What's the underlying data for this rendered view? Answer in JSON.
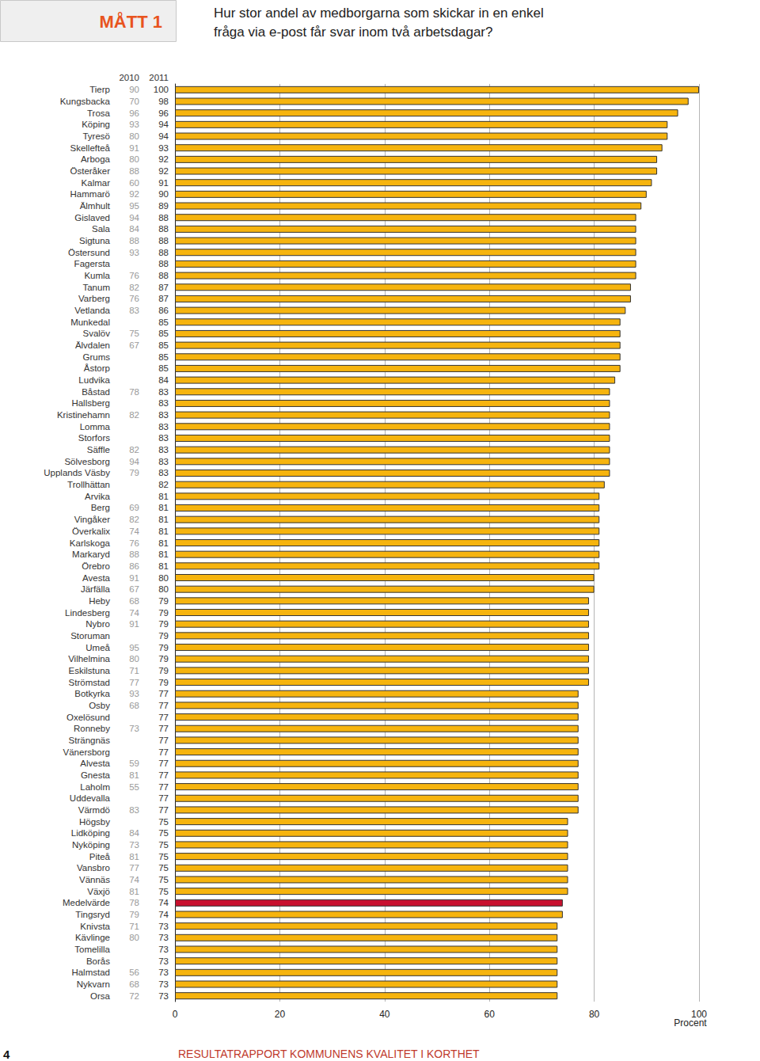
{
  "chart_data": {
    "type": "bar",
    "orientation": "horizontal",
    "badge": "MÅTT 1",
    "title": "Hur stor andel av medborgarna som skickar in en enkel fråga via e-post får svar inom två arbetsdagar?",
    "xlabel": "Procent",
    "page_number": "4",
    "footer": "RESULTATRAPPORT KOMMUNENS KVALITET I KORTHET",
    "categories": [
      "Tierp",
      "Kungsbacka",
      "Trosa",
      "Köping",
      "Tyresö",
      "Skellefteå",
      "Arboga",
      "Österåker",
      "Kalmar",
      "Hammarö",
      "Älmhult",
      "Gislaved",
      "Sala",
      "Sigtuna",
      "Östersund",
      "Fagersta",
      "Kumla",
      "Tanum",
      "Varberg",
      "Vetlanda",
      "Munkedal",
      "Svalöv",
      "Älvdalen",
      "Grums",
      "Åstorp",
      "Ludvika",
      "Båstad",
      "Hallsberg",
      "Kristinehamn",
      "Lomma",
      "Storfors",
      "Säffle",
      "Sölvesborg",
      "Upplands Väsby",
      "Trollhättan",
      "Arvika",
      "Berg",
      "Vingåker",
      "Överkalix",
      "Karlskoga",
      "Markaryd",
      "Örebro",
      "Avesta",
      "Järfälla",
      "Heby",
      "Lindesberg",
      "Nybro",
      "Storuman",
      "Umeå",
      "Vilhelmina",
      "Eskilstuna",
      "Strömstad",
      "Botkyrka",
      "Osby",
      "Oxelösund",
      "Ronneby",
      "Strängnäs",
      "Vänersborg",
      "Alvesta",
      "Gnesta",
      "Laholm",
      "Uddevalla",
      "Värmdö",
      "Högsby",
      "Lidköping",
      "Nyköping",
      "Piteå",
      "Vansbro",
      "Vännäs",
      "Växjö",
      "Medelvärde",
      "Tingsryd",
      "Knivsta",
      "Kävlinge",
      "Tomelilla",
      "Borås",
      "Halmstad",
      "Nykvarn",
      "Orsa"
    ],
    "series": [
      {
        "name": "2010",
        "type": "text",
        "color": "#9a9a9a",
        "values": [
          90,
          70,
          96,
          93,
          80,
          91,
          80,
          88,
          60,
          92,
          95,
          94,
          84,
          88,
          93,
          null,
          76,
          82,
          76,
          83,
          null,
          75,
          67,
          null,
          null,
          null,
          78,
          null,
          82,
          null,
          null,
          82,
          94,
          79,
          null,
          null,
          69,
          82,
          74,
          76,
          88,
          86,
          91,
          67,
          68,
          74,
          91,
          null,
          95,
          80,
          71,
          77,
          93,
          68,
          null,
          73,
          null,
          null,
          59,
          81,
          55,
          null,
          83,
          null,
          84,
          73,
          81,
          77,
          74,
          81,
          78,
          79,
          71,
          80,
          null,
          null,
          56,
          68,
          72
        ]
      },
      {
        "name": "2011",
        "type": "bar",
        "color": "#333333",
        "values": [
          100,
          98,
          96,
          94,
          94,
          93,
          92,
          92,
          91,
          90,
          89,
          88,
          88,
          88,
          88,
          88,
          88,
          87,
          87,
          86,
          85,
          85,
          85,
          85,
          85,
          84,
          83,
          83,
          83,
          83,
          83,
          83,
          83,
          83,
          82,
          81,
          81,
          81,
          81,
          81,
          81,
          81,
          80,
          80,
          79,
          79,
          79,
          79,
          79,
          79,
          79,
          79,
          77,
          77,
          77,
          77,
          77,
          77,
          77,
          77,
          77,
          77,
          77,
          75,
          75,
          75,
          75,
          75,
          75,
          75,
          74,
          74,
          73,
          73,
          73,
          73,
          73,
          73,
          73
        ],
        "colors": [
          "#f6b40e",
          "#f6b40e",
          "#f6b40e",
          "#f6b40e",
          "#f6b40e",
          "#f6b40e",
          "#f6b40e",
          "#f6b40e",
          "#f6b40e",
          "#f6b40e",
          "#f6b40e",
          "#f6b40e",
          "#f6b40e",
          "#f6b40e",
          "#f6b40e",
          "#f6b40e",
          "#f6b40e",
          "#f6b40e",
          "#f6b40e",
          "#f6b40e",
          "#f6b40e",
          "#f6b40e",
          "#f6b40e",
          "#f6b40e",
          "#f6b40e",
          "#f6b40e",
          "#f6b40e",
          "#f6b40e",
          "#f6b40e",
          "#f6b40e",
          "#f6b40e",
          "#f6b40e",
          "#f6b40e",
          "#f6b40e",
          "#f6b40e",
          "#f6b40e",
          "#f6b40e",
          "#f6b40e",
          "#f6b40e",
          "#f6b40e",
          "#f6b40e",
          "#f6b40e",
          "#f6b40e",
          "#f6b40e",
          "#f6b40e",
          "#f6b40e",
          "#f6b40e",
          "#f6b40e",
          "#f6b40e",
          "#f6b40e",
          "#f6b40e",
          "#f6b40e",
          "#f6b40e",
          "#f6b40e",
          "#f6b40e",
          "#f6b40e",
          "#f6b40e",
          "#f6b40e",
          "#f6b40e",
          "#f6b40e",
          "#f6b40e",
          "#f6b40e",
          "#f6b40e",
          "#f6b40e",
          "#f6b40e",
          "#f6b40e",
          "#f6b40e",
          "#f6b40e",
          "#f6b40e",
          "#f6b40e",
          "#c8102e",
          "#f6b40e",
          "#f6b40e",
          "#f6b40e",
          "#f6b40e",
          "#f6b40e",
          "#f6b40e",
          "#f6b40e",
          "#f6b40e"
        ]
      }
    ],
    "xlim": [
      0,
      100
    ],
    "xticks": [
      0,
      20,
      40,
      60,
      80,
      100
    ],
    "grid": true
  }
}
